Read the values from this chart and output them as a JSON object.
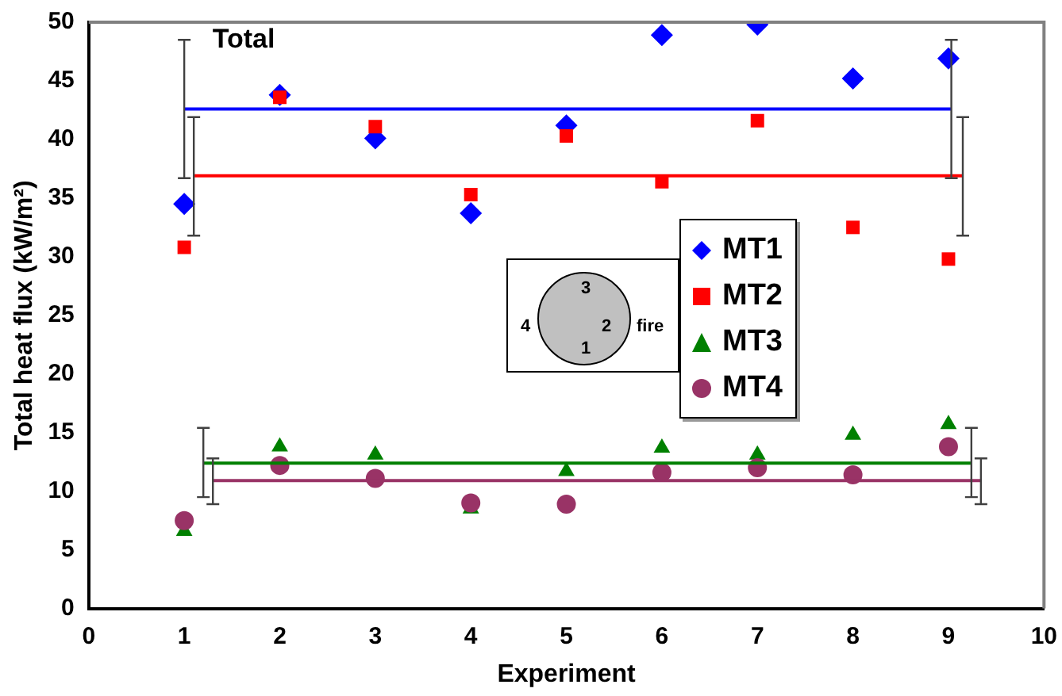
{
  "chart_data": {
    "type": "scatter",
    "title": "Total",
    "xlabel": "Experiment",
    "ylabel": "Total heat flux (kW/m²)",
    "x": [
      1,
      2,
      3,
      4,
      5,
      6,
      7,
      8,
      9
    ],
    "series": [
      {
        "name": "MT1",
        "color": "#0000ff",
        "marker": "diamond",
        "values": [
          34.5,
          43.8,
          40.1,
          33.7,
          41.2,
          48.9,
          49.8,
          45.2,
          46.9
        ]
      },
      {
        "name": "MT2",
        "color": "#ff0000",
        "marker": "square",
        "values": [
          30.8,
          43.6,
          41.1,
          35.3,
          40.3,
          36.4,
          41.6,
          32.5,
          29.8
        ]
      },
      {
        "name": "MT3",
        "color": "#008000",
        "marker": "triangle",
        "values": [
          6.6,
          13.8,
          13.1,
          8.5,
          11.7,
          13.7,
          13.1,
          14.8,
          15.7
        ]
      },
      {
        "name": "MT4",
        "color": "#993366",
        "marker": "circle",
        "values": [
          7.5,
          12.2,
          11.1,
          9.0,
          8.9,
          11.6,
          12.0,
          11.4,
          13.8
        ]
      },
      {
        "type": "line",
        "color": "#0000ff",
        "marker": "none",
        "line_style": "solid",
        "x": [
          1,
          9.03
        ],
        "values": [
          42.6,
          42.6
        ],
        "errors": [
          [
            36.7,
            48.5
          ],
          [
            36.7,
            48.5
          ]
        ]
      },
      {
        "type": "line",
        "color": "#ff0000",
        "marker": "none",
        "line_style": "solid",
        "x": [
          1.1,
          9.15
        ],
        "values": [
          36.9,
          36.9
        ],
        "errors": [
          [
            31.8,
            41.9
          ],
          [
            31.8,
            41.9
          ]
        ]
      },
      {
        "type": "line",
        "color": "#008000",
        "marker": "none",
        "line_style": "solid",
        "x": [
          1.2,
          9.24
        ],
        "values": [
          12.4,
          12.4
        ],
        "errors": [
          [
            9.5,
            15.4
          ],
          [
            9.5,
            15.4
          ]
        ]
      },
      {
        "type": "line",
        "color": "#993366",
        "marker": "none",
        "line_style": "solid",
        "x": [
          1.3,
          9.34
        ],
        "values": [
          10.9,
          10.9
        ],
        "errors": [
          [
            8.9,
            12.8
          ],
          [
            8.9,
            12.8
          ]
        ]
      }
    ],
    "xlim": [
      0,
      10
    ],
    "xticks": [
      0,
      1,
      2,
      3,
      4,
      5,
      6,
      7,
      8,
      9,
      10
    ],
    "ylim": [
      0,
      50
    ],
    "yticks": [
      0,
      5,
      10,
      15,
      20,
      25,
      30,
      35,
      40,
      45,
      50
    ],
    "grid": false,
    "legend": "right",
    "annotations": [
      "3",
      "2",
      "1",
      "4",
      "fire"
    ]
  }
}
